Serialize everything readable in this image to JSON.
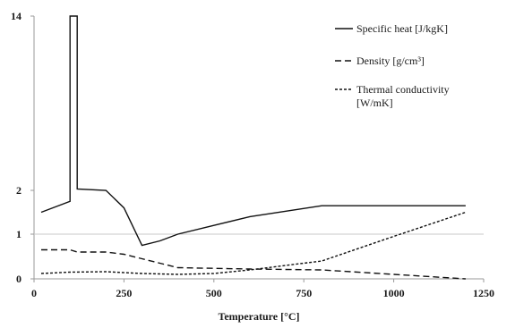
{
  "chart_data": {
    "type": "line",
    "title": "",
    "xlabel": "Temperature [°C]",
    "ylabel": "",
    "xlim": [
      0,
      1250
    ],
    "ylim": [
      0,
      14
    ],
    "x_ticks": [
      0,
      250,
      500,
      750,
      1000,
      1250
    ],
    "x_tick_labels": [
      "0",
      "250",
      "500",
      "750",
      "1000",
      "1250"
    ],
    "y_ticks": [
      0,
      1,
      2,
      14
    ],
    "y_tick_labels": [
      "0",
      "1",
      "2",
      "14"
    ],
    "grid": false,
    "legend_position": "top-right",
    "series": [
      {
        "name": "Specific heat [J/kgK]",
        "style": "solid",
        "color": "#111111",
        "points": [
          [
            20,
            1.5
          ],
          [
            100,
            1.75
          ],
          [
            100,
            14
          ],
          [
            120,
            14
          ],
          [
            120,
            2.1
          ],
          [
            200,
            2.0
          ],
          [
            250,
            1.6
          ],
          [
            300,
            0.75
          ],
          [
            350,
            0.85
          ],
          [
            400,
            1.0
          ],
          [
            500,
            1.2
          ],
          [
            600,
            1.4
          ],
          [
            800,
            1.65
          ],
          [
            1200,
            1.65
          ]
        ]
      },
      {
        "name": "Density [g/cm³]",
        "style": "dashed",
        "color": "#111111",
        "points": [
          [
            20,
            0.65
          ],
          [
            100,
            0.65
          ],
          [
            120,
            0.6
          ],
          [
            200,
            0.6
          ],
          [
            250,
            0.55
          ],
          [
            300,
            0.45
          ],
          [
            350,
            0.35
          ],
          [
            400,
            0.25
          ],
          [
            600,
            0.22
          ],
          [
            800,
            0.2
          ],
          [
            1200,
            0.0
          ]
        ]
      },
      {
        "name": "Thermal conductivity [W/mK]",
        "style": "dotted",
        "color": "#111111",
        "points": [
          [
            20,
            0.12
          ],
          [
            100,
            0.15
          ],
          [
            200,
            0.16
          ],
          [
            300,
            0.12
          ],
          [
            400,
            0.1
          ],
          [
            500,
            0.12
          ],
          [
            600,
            0.2
          ],
          [
            700,
            0.3
          ],
          [
            800,
            0.4
          ],
          [
            1000,
            0.95
          ],
          [
            1200,
            1.5
          ]
        ]
      }
    ]
  }
}
